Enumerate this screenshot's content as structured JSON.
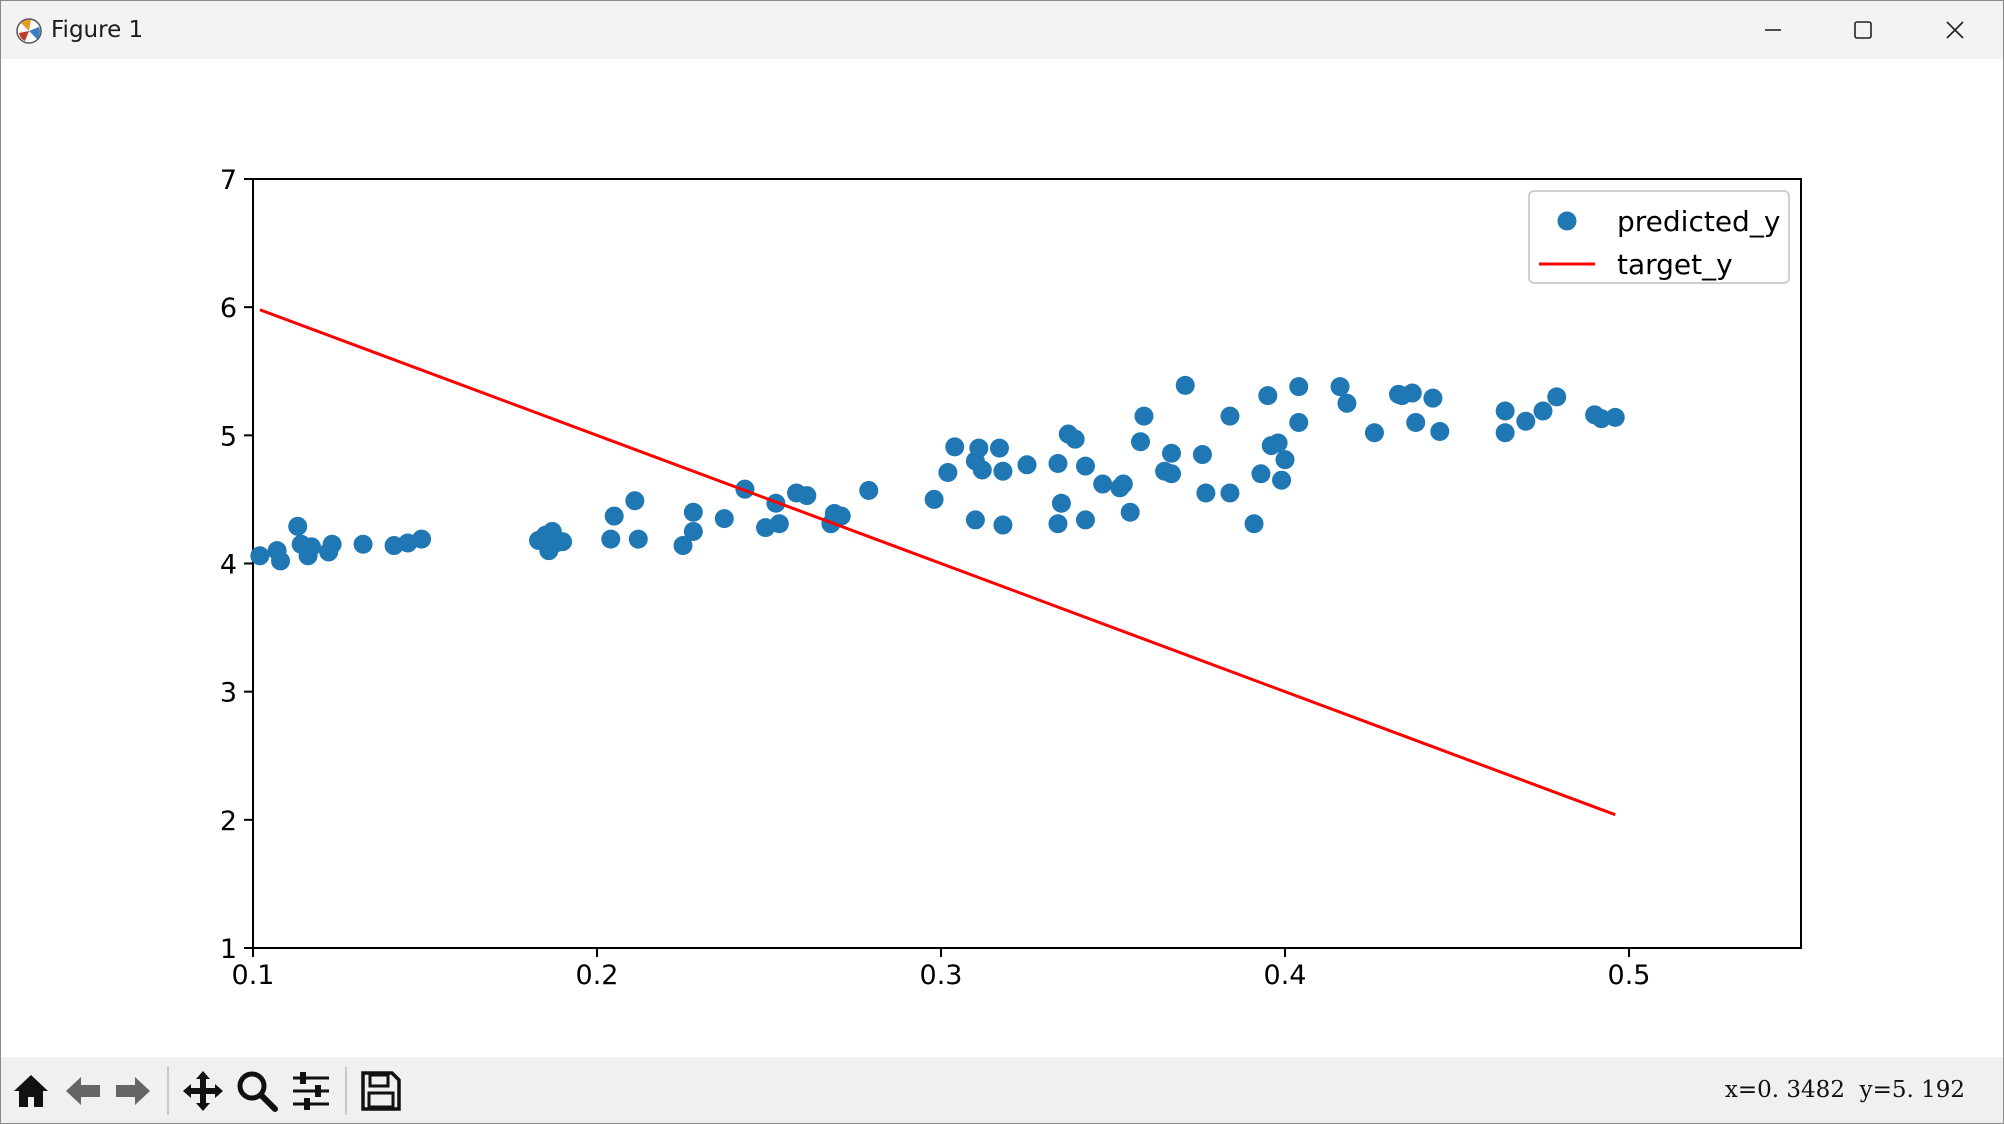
{
  "window": {
    "title": "Figure 1",
    "controls": [
      "minimize",
      "maximize",
      "close"
    ]
  },
  "toolbar": {
    "buttons": [
      "home-icon",
      "back-icon",
      "forward-icon",
      "pan-icon",
      "zoom-icon",
      "configure-subplots-icon",
      "save-icon"
    ],
    "coords_text": "x=0. 3482  y=5. 192"
  },
  "colors": {
    "scatter": "#1f77b4",
    "line": "#ff0000"
  },
  "chart_data": {
    "type": "scatter",
    "xlim": [
      0.1,
      0.55
    ],
    "ylim": [
      1,
      7
    ],
    "x_ticks": [
      "0.1",
      "0.2",
      "0.3",
      "0.4",
      "0.5"
    ],
    "y_ticks": [
      "1",
      "2",
      "3",
      "4",
      "5",
      "6",
      "7"
    ],
    "grid": false,
    "legend_position": "top-right",
    "series": [
      {
        "name": "predicted_y",
        "kind": "scatter",
        "points": [
          [
            0.102,
            4.06
          ],
          [
            0.107,
            4.1
          ],
          [
            0.108,
            4.02
          ],
          [
            0.113,
            4.29
          ],
          [
            0.114,
            4.15
          ],
          [
            0.116,
            4.06
          ],
          [
            0.117,
            4.13
          ],
          [
            0.122,
            4.09
          ],
          [
            0.123,
            4.15
          ],
          [
            0.132,
            4.15
          ],
          [
            0.141,
            4.14
          ],
          [
            0.145,
            4.16
          ],
          [
            0.149,
            4.19
          ],
          [
            0.183,
            4.18
          ],
          [
            0.185,
            4.22
          ],
          [
            0.186,
            4.1
          ],
          [
            0.187,
            4.25
          ],
          [
            0.188,
            4.16
          ],
          [
            0.19,
            4.17
          ],
          [
            0.204,
            4.19
          ],
          [
            0.205,
            4.37
          ],
          [
            0.211,
            4.49
          ],
          [
            0.212,
            4.19
          ],
          [
            0.225,
            4.14
          ],
          [
            0.228,
            4.4
          ],
          [
            0.228,
            4.25
          ],
          [
            0.237,
            4.35
          ],
          [
            0.243,
            4.58
          ],
          [
            0.249,
            4.28
          ],
          [
            0.252,
            4.47
          ],
          [
            0.253,
            4.31
          ],
          [
            0.258,
            4.55
          ],
          [
            0.261,
            4.53
          ],
          [
            0.268,
            4.31
          ],
          [
            0.269,
            4.39
          ],
          [
            0.271,
            4.37
          ],
          [
            0.279,
            4.57
          ],
          [
            0.298,
            4.5
          ],
          [
            0.302,
            4.71
          ],
          [
            0.304,
            4.91
          ],
          [
            0.31,
            4.34
          ],
          [
            0.31,
            4.8
          ],
          [
            0.311,
            4.9
          ],
          [
            0.312,
            4.73
          ],
          [
            0.317,
            4.9
          ],
          [
            0.318,
            4.72
          ],
          [
            0.318,
            4.3
          ],
          [
            0.325,
            4.77
          ],
          [
            0.334,
            4.31
          ],
          [
            0.334,
            4.78
          ],
          [
            0.335,
            4.47
          ],
          [
            0.337,
            5.01
          ],
          [
            0.339,
            4.97
          ],
          [
            0.342,
            4.34
          ],
          [
            0.342,
            4.76
          ],
          [
            0.347,
            4.62
          ],
          [
            0.352,
            4.59
          ],
          [
            0.353,
            4.62
          ],
          [
            0.355,
            4.4
          ],
          [
            0.358,
            4.95
          ],
          [
            0.359,
            5.15
          ],
          [
            0.365,
            4.72
          ],
          [
            0.367,
            4.7
          ],
          [
            0.367,
            4.86
          ],
          [
            0.371,
            5.39
          ],
          [
            0.376,
            4.85
          ],
          [
            0.377,
            4.55
          ],
          [
            0.384,
            4.55
          ],
          [
            0.384,
            5.15
          ],
          [
            0.391,
            4.31
          ],
          [
            0.393,
            4.7
          ],
          [
            0.395,
            5.31
          ],
          [
            0.396,
            4.92
          ],
          [
            0.398,
            4.94
          ],
          [
            0.399,
            4.65
          ],
          [
            0.4,
            4.81
          ],
          [
            0.404,
            5.38
          ],
          [
            0.404,
            5.1
          ],
          [
            0.416,
            5.38
          ],
          [
            0.418,
            5.25
          ],
          [
            0.426,
            5.02
          ],
          [
            0.433,
            5.32
          ],
          [
            0.434,
            5.31
          ],
          [
            0.437,
            5.33
          ],
          [
            0.438,
            5.1
          ],
          [
            0.443,
            5.29
          ],
          [
            0.445,
            5.03
          ],
          [
            0.464,
            5.02
          ],
          [
            0.464,
            5.19
          ],
          [
            0.47,
            5.11
          ],
          [
            0.475,
            5.19
          ],
          [
            0.479,
            5.3
          ],
          [
            0.49,
            5.16
          ],
          [
            0.492,
            5.13
          ],
          [
            0.496,
            5.14
          ]
        ]
      },
      {
        "name": "target_y",
        "kind": "line",
        "points": [
          [
            0.102,
            5.98
          ],
          [
            0.496,
            2.04
          ]
        ]
      }
    ]
  }
}
